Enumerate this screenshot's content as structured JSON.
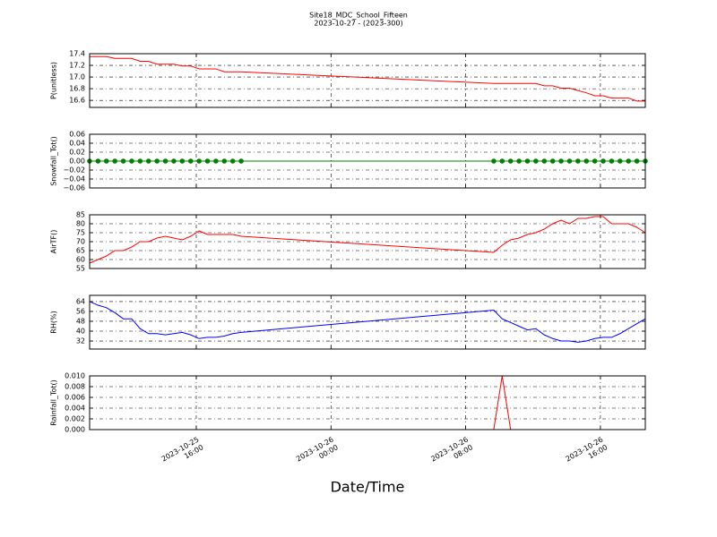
{
  "title": "Site18_MDC_School_Fifteen",
  "subtitle": "2023-10-27 - (2023-300)",
  "xlabel": "Date/Time",
  "x": [
    "2023-10-25 09:40",
    "2023-10-25 10:10",
    "2023-10-25 10:40",
    "2023-10-25 11:10",
    "2023-10-25 11:40",
    "2023-10-25 12:10",
    "2023-10-25 12:40",
    "2023-10-25 13:10",
    "2023-10-25 13:40",
    "2023-10-25 14:10",
    "2023-10-25 14:40",
    "2023-10-25 15:10",
    "2023-10-25 15:40",
    "2023-10-25 16:10",
    "2023-10-25 16:40",
    "2023-10-25 17:10",
    "2023-10-25 17:40",
    "2023-10-25 18:10",
    "2023-10-25 18:40",
    "2023-10-26 09:40",
    "2023-10-26 10:10",
    "2023-10-26 10:40",
    "2023-10-26 11:10",
    "2023-10-26 11:40",
    "2023-10-26 12:10",
    "2023-10-26 12:40",
    "2023-10-26 13:10",
    "2023-10-26 13:40",
    "2023-10-26 14:10",
    "2023-10-26 14:40",
    "2023-10-26 15:10",
    "2023-10-26 15:40",
    "2023-10-26 16:10",
    "2023-10-26 16:40",
    "2023-10-26 17:10",
    "2023-10-26 17:40",
    "2023-10-26 18:10",
    "2023-10-26 18:40"
  ],
  "xlim": [
    "2023-10-25 09:40",
    "2023-10-26 18:40"
  ],
  "xticks": [
    "2023-10-25 16:00",
    "2023-10-26 00:00",
    "2023-10-26 08:00",
    "2023-10-26 16:00"
  ],
  "grid": true,
  "chart_data": [
    {
      "type": "line",
      "ylabel": "P(unitless)",
      "ylim": [
        16.48,
        17.4
      ],
      "yticks": [
        {
          "value": 16.6,
          "label": "16.6"
        },
        {
          "value": 16.8,
          "label": "16.8"
        },
        {
          "value": 17.0,
          "label": "17.0"
        },
        {
          "value": 17.2,
          "label": "17.2"
        },
        {
          "value": 17.4,
          "label": "17.4"
        }
      ],
      "series": [
        {
          "color": "#ff0000",
          "values": [
            17.35,
            17.35,
            17.35,
            17.32,
            17.32,
            17.32,
            17.27,
            17.27,
            17.22,
            17.22,
            17.22,
            17.19,
            17.19,
            17.14,
            17.14,
            17.14,
            17.09,
            17.09,
            17.09,
            16.89,
            16.89,
            16.89,
            16.89,
            16.89,
            16.89,
            16.85,
            16.85,
            16.81,
            16.81,
            16.77,
            16.73,
            16.68,
            16.68,
            16.64,
            16.64,
            16.64,
            16.59,
            16.59
          ]
        }
      ]
    },
    {
      "type": "line",
      "ylabel": "Snowfall_Tot()",
      "ylim": [
        -0.06,
        0.06
      ],
      "yticks": [
        {
          "value": -0.06,
          "label": "−0.06"
        },
        {
          "value": -0.04,
          "label": "−0.04"
        },
        {
          "value": -0.02,
          "label": "−0.02"
        },
        {
          "value": 0,
          "label": "0.00"
        },
        {
          "value": 0.02,
          "label": "0.02"
        },
        {
          "value": 0.04,
          "label": "0.04"
        },
        {
          "value": 0.06,
          "label": "0.06"
        }
      ],
      "series": [
        {
          "color": "#008000",
          "marker": "circle",
          "values": [
            0,
            0,
            0,
            0,
            0,
            0,
            0,
            0,
            0,
            0,
            0,
            0,
            0,
            0,
            0,
            0,
            0,
            0,
            0,
            0,
            0,
            0,
            0,
            0,
            0,
            0,
            0,
            0,
            0,
            0,
            0,
            0,
            0,
            0,
            0,
            0,
            0,
            0
          ]
        }
      ]
    },
    {
      "type": "line",
      "ylabel": "AirTF()",
      "ylim": [
        55,
        85
      ],
      "yticks": [
        55,
        60,
        65,
        70,
        75,
        80,
        85
      ],
      "series": [
        {
          "color": "#ff0000",
          "values": [
            58,
            60,
            62,
            65,
            65,
            67,
            70,
            70,
            72,
            73,
            72,
            71,
            73,
            76,
            74,
            74,
            74,
            74,
            73,
            64,
            68,
            71,
            72,
            74,
            75,
            77,
            80,
            82,
            80,
            83,
            83,
            84,
            84,
            80,
            80,
            80,
            78,
            75
          ]
        }
      ]
    },
    {
      "type": "line",
      "ylabel": "RH(%)",
      "ylim": [
        25.5,
        69
      ],
      "yticks": [
        32,
        40,
        48,
        56,
        64
      ],
      "series": [
        {
          "color": "#0000ff",
          "values": [
            64,
            61,
            59,
            55,
            50,
            50,
            42,
            38,
            38,
            37,
            38,
            39,
            37,
            34,
            35,
            35,
            36,
            38,
            39,
            57,
            50,
            47,
            44,
            41,
            42,
            37,
            34,
            32,
            32,
            31,
            32,
            34,
            35,
            35,
            38,
            42,
            46,
            50
          ]
        }
      ]
    },
    {
      "type": "line",
      "ylabel": "Rainfall_Tot()",
      "ylim": [
        0,
        0.01
      ],
      "yticks": [
        {
          "value": 0,
          "label": "0.000"
        },
        {
          "value": 0.002,
          "label": "0.002"
        },
        {
          "value": 0.004,
          "label": "0.004"
        },
        {
          "value": 0.006,
          "label": "0.006"
        },
        {
          "value": 0.008,
          "label": "0.008"
        },
        {
          "value": 0.01,
          "label": "0.010"
        }
      ],
      "series": [
        {
          "color": "#ff0000",
          "values": [
            0,
            0,
            0,
            0,
            0,
            0,
            0,
            0,
            0,
            0,
            0,
            0,
            0,
            0,
            0,
            0,
            0,
            0,
            0,
            0,
            0.01,
            0,
            0,
            0,
            0,
            0,
            0,
            0,
            0,
            0,
            0,
            0,
            0,
            0,
            0,
            0,
            0,
            0
          ]
        }
      ]
    }
  ]
}
